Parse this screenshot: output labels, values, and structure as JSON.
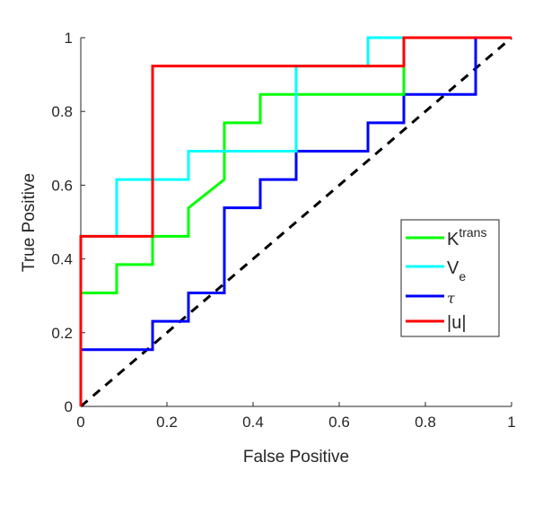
{
  "chart_data": {
    "type": "line",
    "title": "",
    "xlabel": "False Positive",
    "ylabel": "True Positive",
    "xlim": [
      0,
      1
    ],
    "ylim": [
      0,
      1
    ],
    "xticks": [
      "0",
      "0.2",
      "0.4",
      "0.6",
      "0.8",
      "1"
    ],
    "yticks": [
      "0",
      "0.2",
      "0.4",
      "0.6",
      "0.8",
      "1"
    ],
    "grid": false,
    "legend_position": "right",
    "series": [
      {
        "name": "Ktrans",
        "label_main": "K",
        "label_sup": "trans",
        "color": "#00ff00",
        "x": [
          0,
          0,
          0.0833,
          0.0833,
          0.1667,
          0.1667,
          0.25,
          0.25,
          0.3333,
          0.3333,
          0.4167,
          0.4167,
          0.75,
          0.75,
          1
        ],
        "y": [
          0,
          0.3077,
          0.3077,
          0.3846,
          0.3846,
          0.4615,
          0.4615,
          0.5385,
          0.6154,
          0.7692,
          0.7692,
          0.8462,
          0.8462,
          1,
          1
        ]
      },
      {
        "name": "Ve",
        "label_main": "V",
        "label_sub": "e",
        "color": "#00ffff",
        "x": [
          0,
          0,
          0.0833,
          0.0833,
          0.25,
          0.25,
          0.5,
          0.5,
          0.6667,
          0.6667,
          1
        ],
        "y": [
          0,
          0.4615,
          0.4615,
          0.6154,
          0.6154,
          0.6923,
          0.6923,
          0.9231,
          0.9231,
          1,
          1
        ]
      },
      {
        "name": "τ",
        "label_main": "τ",
        "color": "#0000ff",
        "x": [
          0,
          0,
          0.1667,
          0.1667,
          0.25,
          0.25,
          0.3333,
          0.3333,
          0.4167,
          0.4167,
          0.5,
          0.5,
          0.6667,
          0.6667,
          0.75,
          0.75,
          0.9167,
          0.9167,
          1
        ],
        "y": [
          0,
          0.1538,
          0.1538,
          0.2308,
          0.2308,
          0.3077,
          0.3077,
          0.5385,
          0.5385,
          0.6154,
          0.6154,
          0.6923,
          0.6923,
          0.7692,
          0.7692,
          0.8462,
          0.8462,
          1,
          1
        ]
      },
      {
        "name": "|u|",
        "label_main": "|u|",
        "color": "#ff0000",
        "x": [
          0,
          0,
          0.1667,
          0.1667,
          0.75,
          0.75,
          1
        ],
        "y": [
          0,
          0.4615,
          0.4615,
          0.9231,
          0.9231,
          1,
          1
        ]
      }
    ],
    "reference_line": {
      "x": [
        0,
        1
      ],
      "y": [
        0,
        1
      ],
      "color": "#000000",
      "style": "dashed"
    }
  }
}
